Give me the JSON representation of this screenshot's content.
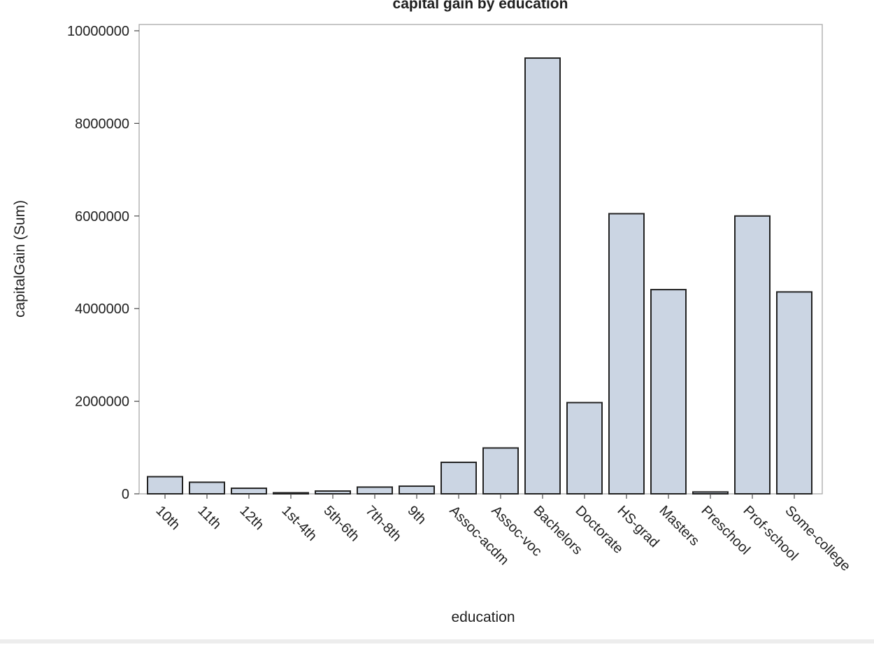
{
  "chart_data": {
    "type": "bar",
    "title": "capital gain by education",
    "xlabel": "education",
    "ylabel": "capitalGain (Sum)",
    "ylim": [
      0,
      10000000
    ],
    "yticks": [
      "0",
      "2000000",
      "4000000",
      "6000000",
      "8000000",
      "10000000"
    ],
    "grid": false,
    "categories": [
      "10th",
      "11th",
      "12th",
      "1st-4th",
      "5th-6th",
      "7th-8th",
      "9th",
      "Assoc-acdm",
      "Assoc-voc",
      "Bachelors",
      "Doctorate",
      "HS-grad",
      "Masters",
      "Preschool",
      "Prof-school",
      "Some-college"
    ],
    "values": [
      370000,
      250000,
      120000,
      20000,
      60000,
      145000,
      165000,
      680000,
      990000,
      9410000,
      1970000,
      6050000,
      4410000,
      40000,
      6000000,
      4360000
    ],
    "colors": {
      "bar_fill": "#cbd5e3",
      "bar_stroke": "#222222",
      "frame": "#a9a9a9"
    }
  }
}
